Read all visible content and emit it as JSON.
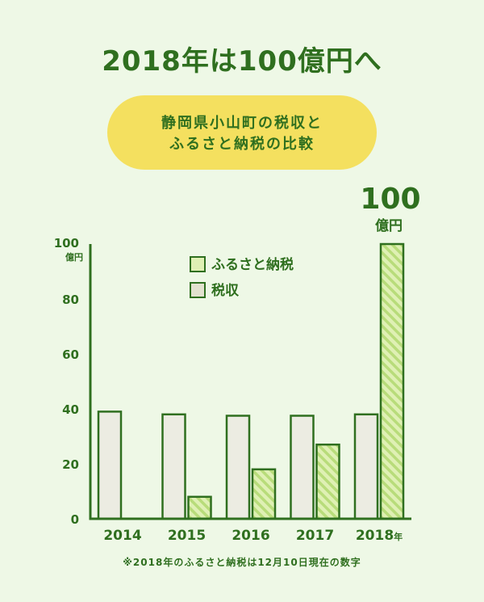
{
  "title": "2018年は100億円へ",
  "badge": {
    "line1": "静岡県小山町の税収と",
    "line2": "ふるさと納税の比較"
  },
  "footnote": "※2018年のふるさと納税は12月10日現在の数字",
  "highlight": {
    "value": "100",
    "unit": "億円"
  },
  "colors": {
    "dark_green": "#2f6f1f",
    "tax_fill": "#ecece2",
    "furusato_fill": "#dff0b4",
    "furusato_stripe": "#b8dc7a",
    "background": "#eef8e6",
    "badge": "#f4e05f"
  },
  "chart_data": {
    "type": "bar",
    "categories": [
      "2014",
      "2015",
      "2016",
      "2017",
      "2018"
    ],
    "category_suffix_last": "年",
    "series": [
      {
        "name": "税収",
        "values": [
          39,
          38,
          37.5,
          37.5,
          38
        ]
      },
      {
        "name": "ふるさと納税",
        "values": [
          0,
          8,
          18,
          27,
          100
        ]
      }
    ],
    "ylim": [
      0,
      100
    ],
    "yticks": [
      0,
      20,
      40,
      60,
      80,
      100
    ],
    "yunit": "億円",
    "legend": [
      {
        "label": "ふるさと納税",
        "style": "furusato"
      },
      {
        "label": "税収",
        "style": "tax"
      }
    ],
    "legend_position": "top-center"
  }
}
